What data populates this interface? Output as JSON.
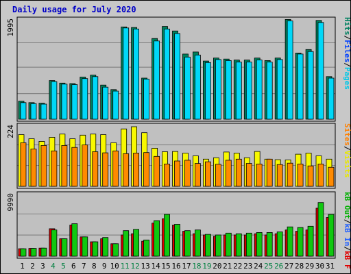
{
  "chart_data": {
    "type": "bar",
    "title": "Daily usage for July 2020",
    "categories": [
      "1",
      "2",
      "3",
      "4",
      "5",
      "6",
      "7",
      "8",
      "9",
      "10",
      "11",
      "12",
      "13",
      "14",
      "15",
      "16",
      "17",
      "18",
      "19",
      "20",
      "21",
      "22",
      "23",
      "24",
      "25",
      "26",
      "27",
      "28",
      "29",
      "30",
      "31"
    ],
    "weekend_days": [
      "4",
      "5",
      "11",
      "12",
      "18",
      "19",
      "25",
      "26"
    ],
    "panels": [
      {
        "id": "hits",
        "ymax_label": "1995",
        "ymax": 1995,
        "legend": [
          {
            "text": "Pages",
            "color": "#00c8e8"
          },
          {
            "text": "Files",
            "color": "#0040ff"
          },
          {
            "text": "Hits",
            "color": "#008060"
          }
        ],
        "series": [
          {
            "name": "Hits",
            "color": "#00805b",
            "values": [
              360,
              330,
              320,
              770,
              720,
              710,
              840,
              880,
              680,
              590,
              1840,
              1830,
              820,
              1610,
              1850,
              1760,
              1300,
              1340,
              1160,
              1220,
              1200,
              1180,
              1180,
              1220,
              1170,
              1220,
              1990,
              1320,
              1390,
              1970,
              850
            ]
          },
          {
            "name": "Pages",
            "color": "#00d8f8",
            "values": [
              330,
              310,
              300,
              750,
              700,
              690,
              810,
              850,
              640,
              560,
              1820,
              1800,
              800,
              1560,
              1800,
              1710,
              1240,
              1280,
              1130,
              1190,
              1170,
              1140,
              1140,
              1180,
              1140,
              1190,
              1960,
              1300,
              1350,
              1930,
              820
            ]
          }
        ]
      },
      {
        "id": "visits",
        "ymax_label": "224",
        "ymax": 224,
        "legend": [
          {
            "text": "Visits",
            "color": "#e8e800"
          },
          {
            "text": "Sites",
            "color": "#ff8000"
          }
        ],
        "series": [
          {
            "name": "Visits",
            "color": "#f8f800",
            "values": [
              190,
              175,
              165,
              180,
              192,
              175,
              188,
              192,
              190,
              160,
              211,
              219,
              197,
              140,
              127,
              128,
              122,
              112,
              100,
              105,
              126,
              122,
              105,
              128,
              100,
              98,
              97,
              118,
              122,
              112,
              100
            ]
          },
          {
            "name": "Sites",
            "color": "#ff8a00",
            "values": [
              160,
              137,
              150,
              130,
              150,
              143,
              152,
              127,
              123,
              130,
              120,
              122,
              124,
              110,
              82,
              93,
              96,
              84,
              90,
              81,
              96,
              100,
              84,
              82,
              100,
              80,
              85,
              82,
              75,
              82,
              70
            ]
          }
        ]
      },
      {
        "id": "kbytes",
        "ymax_label": "9990",
        "ymax": 9990,
        "legend": [
          {
            "text": "kB F",
            "color": "#e00000"
          },
          {
            "text": "kB In",
            "color": "#2060ff"
          },
          {
            "text": "kB Out",
            "color": "#00b000"
          }
        ],
        "series": [
          {
            "name": "kB F",
            "color": "#dc0000",
            "values": [
              1200,
              1250,
              1300,
              4400,
              2800,
              5000,
              3100,
              2300,
              2800,
              2000,
              3400,
              3600,
              2400,
              5300,
              6000,
              5000,
              4000,
              3600,
              3400,
              3200,
              3400,
              3400,
              3400,
              3600,
              3400,
              3600,
              4200,
              4000,
              4200,
              7700,
              6200
            ]
          },
          {
            "name": "kB Out",
            "color": "#10c810",
            "values": [
              1200,
              1250,
              1300,
              4200,
              2800,
              5200,
              3100,
              2300,
              3000,
              2000,
              4100,
              4300,
              2600,
              5700,
              6700,
              5100,
              4100,
              4200,
              3500,
              3400,
              3700,
              3600,
              3700,
              3800,
              3800,
              3900,
              4700,
              4600,
              4800,
              8600,
              6700
            ]
          }
        ]
      }
    ]
  }
}
